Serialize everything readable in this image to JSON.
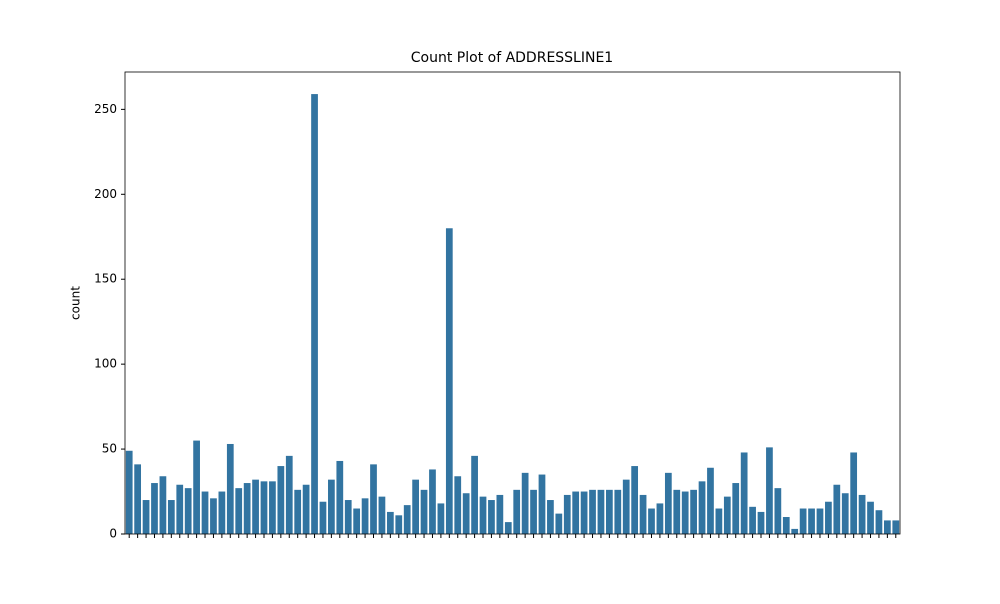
{
  "chart_data": {
    "type": "bar",
    "title": "Count Plot of ADDRESSLINE1",
    "y_label": "count",
    "categories": [
      null,
      null,
      null,
      null,
      null,
      null,
      null,
      null,
      null,
      null,
      null,
      null,
      null,
      null,
      null,
      null,
      null,
      null,
      null,
      null,
      null,
      null,
      null,
      null,
      null,
      null,
      null,
      null,
      null,
      null,
      null,
      null,
      null,
      null,
      null,
      null,
      null,
      null,
      null,
      null,
      null,
      null,
      null,
      null,
      null,
      null,
      null,
      null,
      null,
      null,
      null,
      null,
      null,
      null,
      null,
      null,
      null,
      null,
      null,
      null,
      null,
      null,
      null,
      null,
      null,
      null,
      null,
      null,
      null,
      null,
      null,
      null,
      null,
      null,
      null,
      null,
      null,
      null,
      null,
      null,
      null,
      null,
      null,
      null,
      null,
      null,
      null,
      null,
      null,
      null,
      null,
      null
    ],
    "values": [
      49,
      41,
      20,
      30,
      34,
      20,
      29,
      27,
      55,
      25,
      21,
      25,
      53,
      27,
      30,
      32,
      31,
      31,
      40,
      46,
      26,
      29,
      259,
      19,
      32,
      43,
      20,
      15,
      21,
      41,
      22,
      13,
      11,
      17,
      32,
      26,
      38,
      18,
      180,
      34,
      24,
      46,
      22,
      20,
      23,
      7,
      26,
      36,
      26,
      35,
      20,
      12,
      23,
      25,
      25,
      26,
      26,
      26,
      26,
      32,
      40,
      23,
      15,
      18,
      36,
      26,
      25,
      26,
      31,
      39,
      15,
      22,
      30,
      48,
      16,
      13,
      51,
      27,
      10,
      3,
      15,
      15,
      15,
      19,
      29,
      24,
      48,
      23,
      19,
      14,
      8,
      8
    ],
    "color": "#3274a1",
    "ylim": [
      0,
      272
    ],
    "yticks": [
      0,
      50,
      100,
      150,
      200,
      250
    ],
    "grid": false
  }
}
